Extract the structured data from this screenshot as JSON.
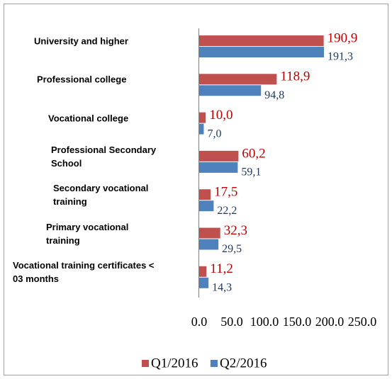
{
  "chart_data": {
    "type": "bar",
    "orientation": "horizontal",
    "categories": [
      "University and higher",
      "Professional college",
      "Vocational college",
      "Professional Secondary School",
      "Secondary vocational training",
      "Primary vocational training",
      "Vocational training certificates < 03 months"
    ],
    "series": [
      {
        "name": "Q1/2016",
        "color": "#c0504d",
        "label_color": "#c00000",
        "values": [
          190.9,
          118.9,
          10.0,
          60.2,
          17.5,
          32.3,
          11.2
        ],
        "value_labels": [
          "190,9",
          "118,9",
          "10,0",
          "60,2",
          "17,5",
          "32,3",
          "11,2"
        ]
      },
      {
        "name": "Q2/2016",
        "color": "#4f81bd",
        "label_color": "#1f3864",
        "values": [
          191.3,
          94.8,
          7.0,
          59.1,
          22.2,
          29.5,
          14.3
        ],
        "value_labels": [
          "191,3",
          "94,8",
          "7,0",
          "59,1",
          "22,2",
          "29,5",
          "14,3"
        ]
      }
    ],
    "xlim": [
      0,
      250
    ],
    "xticks": [
      {
        "value": 0,
        "label": "0.0"
      },
      {
        "value": 50,
        "label": "50.0"
      },
      {
        "value": 100,
        "label": "100.0"
      },
      {
        "value": 150,
        "label": "150.0"
      },
      {
        "value": 200,
        "label": "200.0"
      },
      {
        "value": 250,
        "label": "250.0"
      }
    ],
    "legend": "bottom",
    "grid": false
  }
}
